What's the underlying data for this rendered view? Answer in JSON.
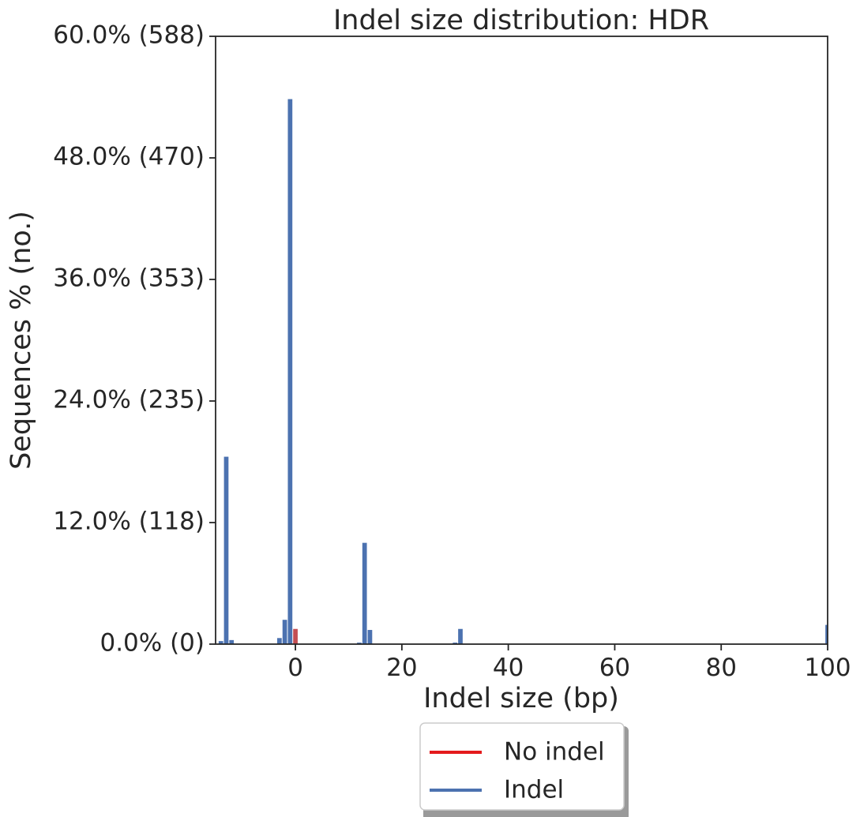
{
  "chart_data": {
    "type": "bar",
    "title": "Indel size distribution: HDR",
    "xlabel": "Indel size (bp)",
    "ylabel": "Sequences % (no.)",
    "xlim": [
      -15,
      100
    ],
    "ylim": [
      0,
      60
    ],
    "x_ticks": [
      {
        "value": 0,
        "label": "0"
      },
      {
        "value": 20,
        "label": "20"
      },
      {
        "value": 40,
        "label": "40"
      },
      {
        "value": 60,
        "label": "60"
      },
      {
        "value": 80,
        "label": "80"
      },
      {
        "value": 100,
        "label": "100"
      }
    ],
    "y_ticks": [
      {
        "value": 0,
        "label": "0.0% (0)"
      },
      {
        "value": 12,
        "label": "12.0% (118)"
      },
      {
        "value": 24,
        "label": "24.0% (235)"
      },
      {
        "value": 36,
        "label": "36.0% (353)"
      },
      {
        "value": 48,
        "label": "48.0% (470)"
      },
      {
        "value": 60,
        "label": "60.0% (588)"
      }
    ],
    "series": [
      {
        "name": "No indel",
        "legend_color": "#e41a1c",
        "bar_color": "#c44e52",
        "points": [
          {
            "x": 0,
            "y": 1.5
          }
        ]
      },
      {
        "name": "Indel",
        "legend_color": "#4c72b0",
        "bar_color": "#4c72b0",
        "points": [
          {
            "x": -14,
            "y": 0.3
          },
          {
            "x": -13,
            "y": 18.5
          },
          {
            "x": -12,
            "y": 0.4
          },
          {
            "x": -3,
            "y": 0.6
          },
          {
            "x": -2,
            "y": 2.4
          },
          {
            "x": -1,
            "y": 53.8
          },
          {
            "x": 12,
            "y": 0.15
          },
          {
            "x": 13,
            "y": 10.0
          },
          {
            "x": 14,
            "y": 1.4
          },
          {
            "x": 30,
            "y": 0.15
          },
          {
            "x": 31,
            "y": 1.5
          },
          {
            "x": 100,
            "y": 1.9
          }
        ]
      }
    ],
    "legend": {
      "position": "below-center",
      "entries": [
        "No indel",
        "Indel"
      ]
    },
    "grid": false
  }
}
